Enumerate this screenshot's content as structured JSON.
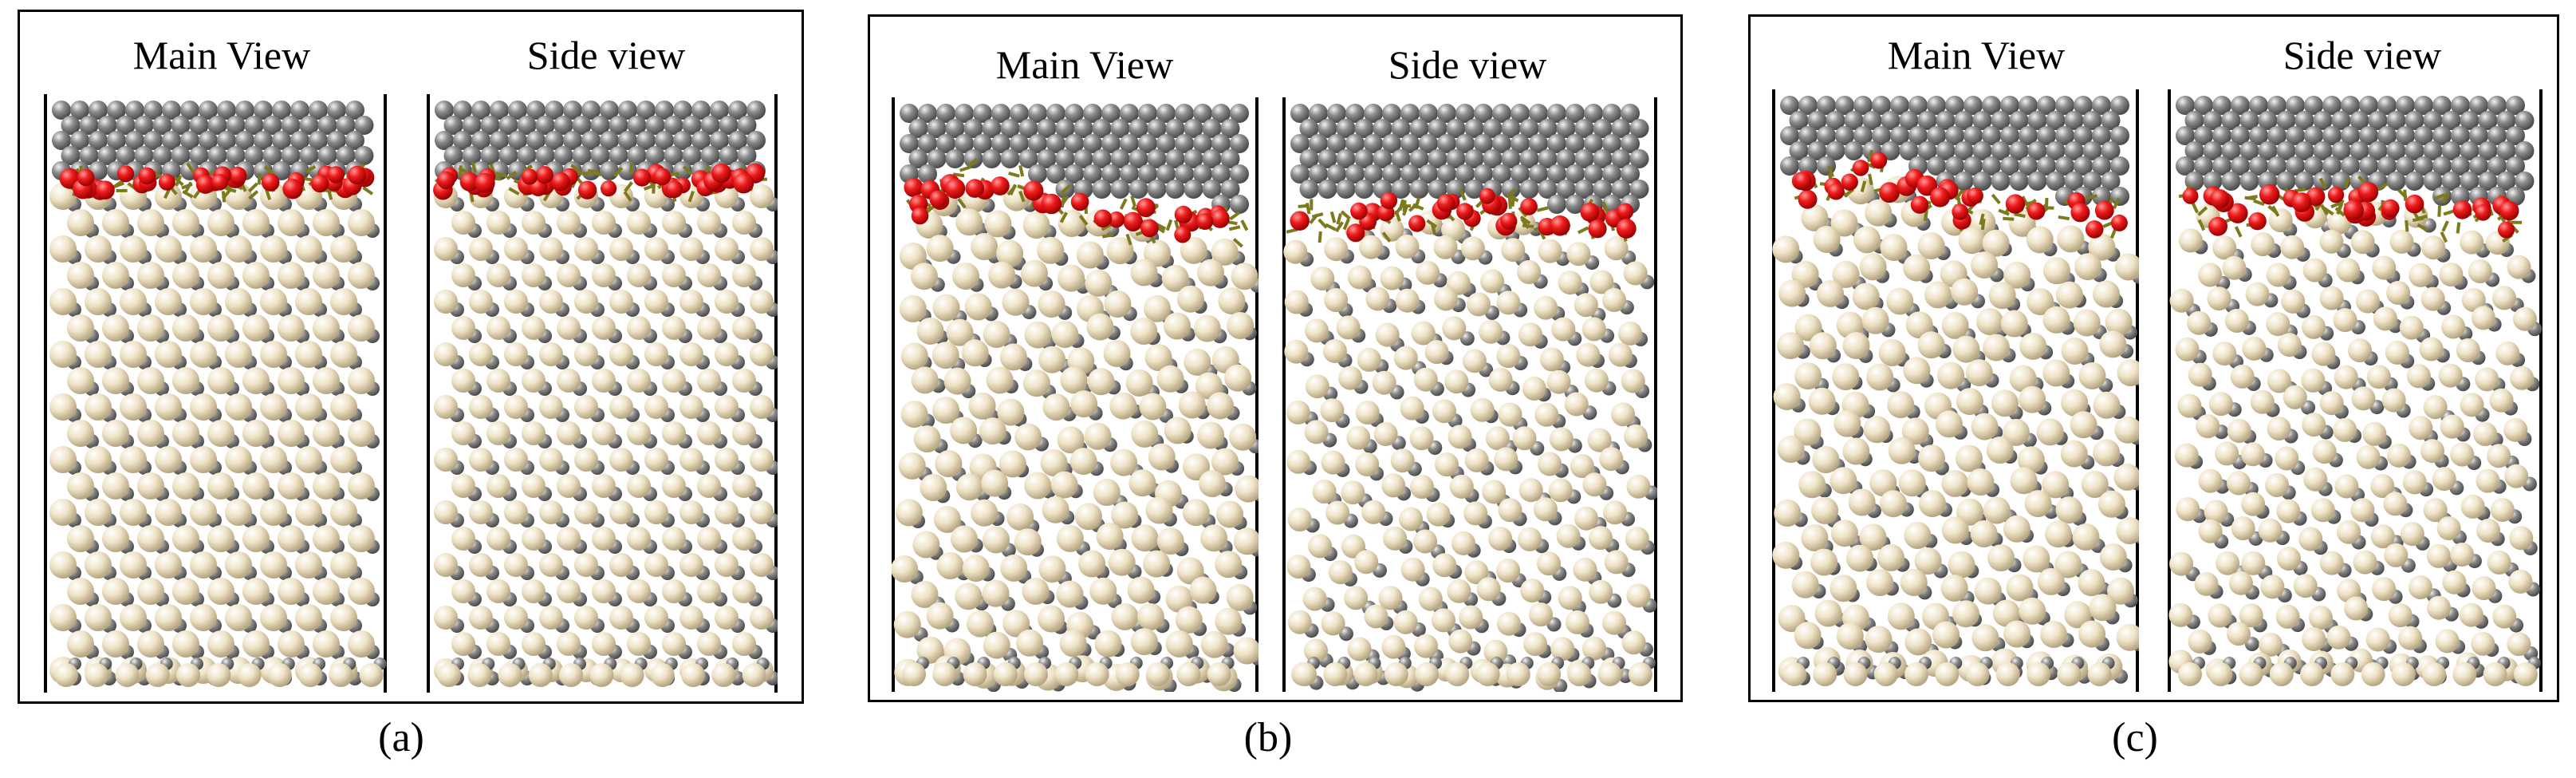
{
  "panels": [
    {
      "label": "(a)",
      "views": [
        {
          "title": "Main View",
          "kind": "main",
          "interface": "flat",
          "disorder": 0.0
        },
        {
          "title": "Side view",
          "kind": "side",
          "interface": "flat",
          "disorder": 0.0
        }
      ]
    },
    {
      "label": "(b)",
      "views": [
        {
          "title": "Main View",
          "kind": "main",
          "interface": "bump",
          "disorder": 1.0
        },
        {
          "title": "Side view",
          "kind": "side",
          "interface": "wavy",
          "disorder": 1.0
        }
      ]
    },
    {
      "label": "(c)",
      "views": [
        {
          "title": "Main View",
          "kind": "main",
          "interface": "bump",
          "disorder": 1.0
        },
        {
          "title": "Side view",
          "kind": "side",
          "interface": "wavy",
          "disorder": 1.0
        }
      ]
    }
  ],
  "colors": {
    "carbon": "#8c8c8c",
    "carbon_dark": "#4a4a4a",
    "substrate": "#efe3c6",
    "substrate_dark": "#b5a581",
    "oxygen": "#ee1c1c",
    "oxygen_dark": "#9a0000",
    "bond_olive": "#7d7a1e",
    "frame": "#000000"
  }
}
